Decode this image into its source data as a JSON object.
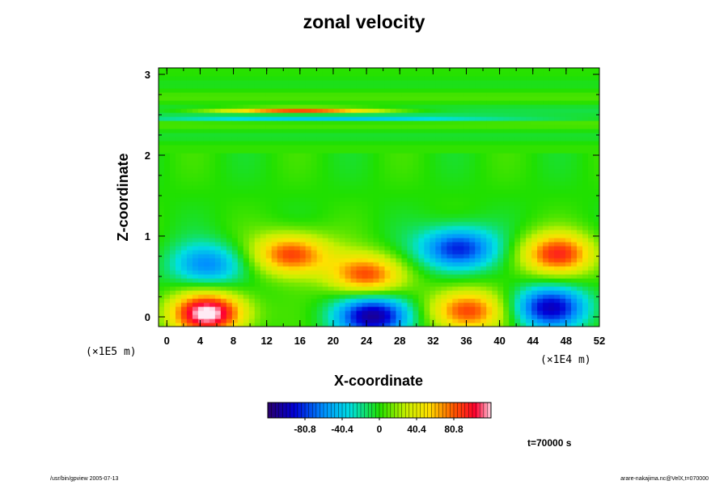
{
  "chart_data": {
    "type": "heatmap",
    "title": "zonal velocity",
    "xlabel": "X-coordinate",
    "ylabel": "Z-coordinate",
    "x_unit_label": "(×1E4 m)",
    "y_unit_label": "(×1E5 m)",
    "x_ticks": [
      "0",
      "4",
      "8",
      "12",
      "16",
      "20",
      "24",
      "28",
      "32",
      "36",
      "40",
      "44",
      "48",
      "52"
    ],
    "y_ticks": [
      "0",
      "1",
      "2",
      "3"
    ],
    "xlim": [
      -1,
      52
    ],
    "ylim": [
      -0.12,
      3.08
    ],
    "colorbar_ticks": [
      "-80.8",
      "-40.4",
      "0",
      "40.4",
      "80.8"
    ],
    "colorbar_range": [
      -121.2,
      121.2
    ],
    "time_label": "t=70000 s",
    "features": [
      {
        "label": "jet",
        "x": 16,
        "z": 2.56,
        "value": 95
      },
      {
        "label": "jet-neg",
        "x": 20,
        "z": 2.46,
        "value": -45
      },
      {
        "label": "max-left",
        "x": 5,
        "z": 0.05,
        "value": 125
      },
      {
        "label": "pos-1",
        "x": 15,
        "z": 0.78,
        "value": 90
      },
      {
        "label": "pos-2",
        "x": 24,
        "z": 0.52,
        "value": 85
      },
      {
        "label": "pos-3",
        "x": 47,
        "z": 0.78,
        "value": 90
      },
      {
        "label": "pos-4",
        "x": 36,
        "z": 0.08,
        "value": 90
      },
      {
        "label": "neg-1",
        "x": 25,
        "z": 0.02,
        "value": -110
      },
      {
        "label": "neg-2",
        "x": 46,
        "z": 0.12,
        "value": -95
      },
      {
        "label": "neg-3",
        "x": 35,
        "z": 0.85,
        "value": -90
      },
      {
        "label": "neg-4",
        "x": 5,
        "z": 0.65,
        "value": -60
      }
    ]
  },
  "footer": {
    "left": "/usr/bin/gpview 2005-07-13",
    "right": "arare-nakajima.nc@VelX,t=070000"
  }
}
